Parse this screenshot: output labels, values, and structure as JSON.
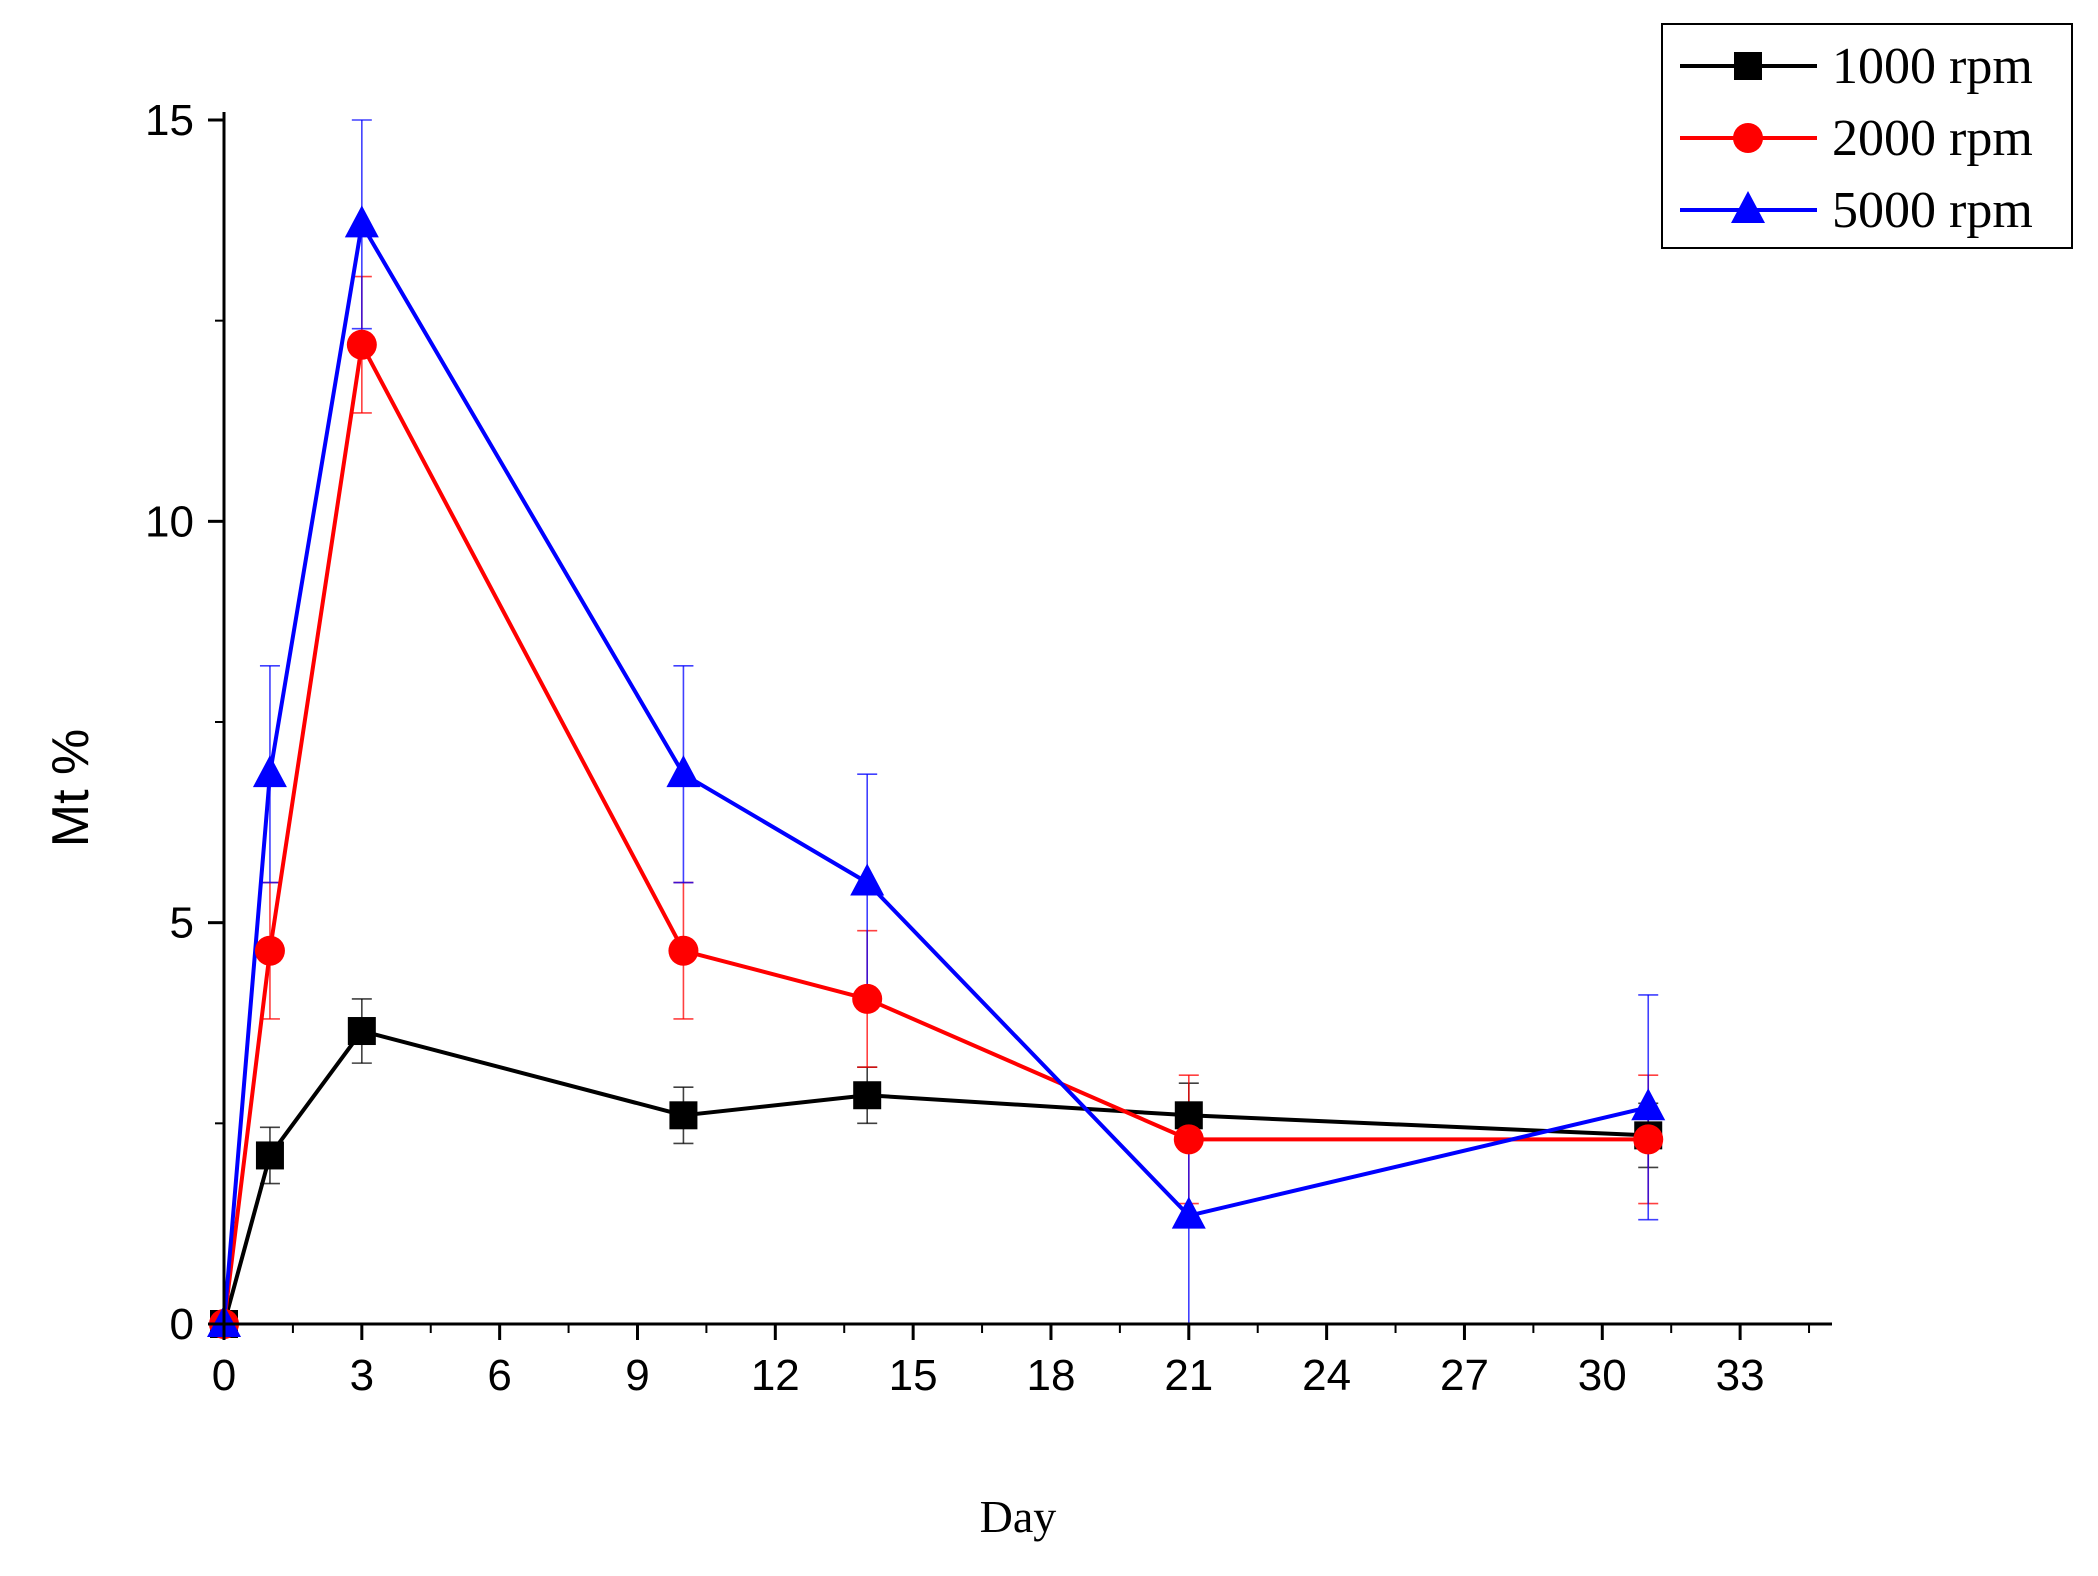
{
  "chart_data": {
    "type": "line",
    "xlabel": "Day",
    "ylabel": "Mt %",
    "xlim": [
      0,
      35
    ],
    "ylim": [
      0,
      15
    ],
    "xticks": [
      0,
      3,
      6,
      9,
      12,
      15,
      18,
      21,
      24,
      27,
      30,
      33
    ],
    "yticks": [
      0,
      5,
      10,
      15
    ],
    "grid": false,
    "legend_position": "top-right",
    "series": [
      {
        "name": "1000 rpm",
        "color": "#000000",
        "marker": "square",
        "x": [
          0,
          1,
          3,
          10,
          14,
          21,
          31
        ],
        "y": [
          0,
          2.1,
          3.65,
          2.6,
          2.85,
          2.6,
          2.35
        ],
        "err": [
          0,
          0.35,
          0.4,
          0.35,
          0.35,
          0.4,
          0.4
        ]
      },
      {
        "name": "2000 rpm",
        "color": "#ff0000",
        "marker": "circle",
        "x": [
          0,
          1,
          3,
          10,
          14,
          21,
          31
        ],
        "y": [
          0,
          4.65,
          12.2,
          4.65,
          4.05,
          2.3,
          2.3
        ],
        "err": [
          0,
          0.85,
          0.85,
          0.85,
          0.85,
          0.8,
          0.8
        ]
      },
      {
        "name": "5000 rpm",
        "color": "#0000ff",
        "marker": "triangle",
        "x": [
          0,
          1,
          3,
          10,
          14,
          21,
          31
        ],
        "y": [
          0,
          6.85,
          13.7,
          6.85,
          5.5,
          1.35,
          2.7
        ],
        "err": [
          0,
          1.35,
          1.3,
          1.35,
          1.35,
          1.35,
          1.4
        ]
      }
    ]
  }
}
